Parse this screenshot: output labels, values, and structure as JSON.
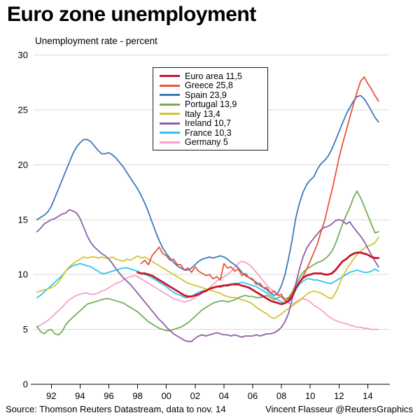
{
  "title": "Euro zone unemployment",
  "subtitle": "Unemployment rate - percent",
  "source_left": "Source: Thomson Reuters Datastream, data to nov. 14",
  "source_right": "Vincent Flasseur @ReutersGraphics",
  "chart_data": {
    "type": "line",
    "title": "Euro zone unemployment",
    "ylabel": "Unemployment rate - percent",
    "x_start": 1991.0,
    "x_step": 0.25,
    "xlim": [
      1990.8,
      2015.5
    ],
    "ylim": [
      0,
      30
    ],
    "y_ticks": [
      0,
      5,
      10,
      15,
      20,
      25,
      30
    ],
    "x_ticks": [
      1992,
      1994,
      1996,
      1998,
      2000,
      2002,
      2004,
      2006,
      2008,
      2010,
      2012,
      2014
    ],
    "x_tick_labels": [
      "92",
      "94",
      "96",
      "98",
      "00",
      "02",
      "04",
      "06",
      "08",
      "10",
      "12",
      "14"
    ],
    "grid": "horizontal",
    "grid_color": "#d9d9d9",
    "axis_color": "#000000",
    "legend_position": "top-inside",
    "series": [
      {
        "name": "Euro area",
        "legend_label": "Euro area 11,5",
        "color": "#c9182a",
        "width": 2.8,
        "values": [
          null,
          null,
          null,
          null,
          null,
          null,
          null,
          null,
          null,
          null,
          null,
          null,
          null,
          null,
          null,
          null,
          null,
          null,
          null,
          null,
          null,
          null,
          null,
          null,
          null,
          null,
          null,
          null,
          10.2,
          10.1,
          10.1,
          10.0,
          9.9,
          9.7,
          9.5,
          9.3,
          9.1,
          8.9,
          8.7,
          8.5,
          8.3,
          8.1,
          8.0,
          8.0,
          8.1,
          8.2,
          8.4,
          8.5,
          8.7,
          8.8,
          8.9,
          8.9,
          9.0,
          9.0,
          9.1,
          9.1,
          9.1,
          9.0,
          8.9,
          8.8,
          8.6,
          8.4,
          8.2,
          8.0,
          7.8,
          7.6,
          7.5,
          7.4,
          7.3,
          7.4,
          7.6,
          8.0,
          8.8,
          9.3,
          9.7,
          9.9,
          10.0,
          10.1,
          10.1,
          10.1,
          10.0,
          10.0,
          10.1,
          10.4,
          10.8,
          11.2,
          11.4,
          11.7,
          11.9,
          12.0,
          12.0,
          11.9,
          11.8,
          11.6,
          11.5,
          11.5
        ]
      },
      {
        "name": "Greece",
        "legend_label": "Greece 25,8",
        "color": "#e8543f",
        "width": 1.8,
        "values": [
          null,
          null,
          null,
          null,
          null,
          null,
          null,
          null,
          null,
          null,
          null,
          null,
          null,
          null,
          null,
          null,
          null,
          null,
          null,
          null,
          null,
          null,
          null,
          null,
          null,
          null,
          null,
          null,
          null,
          11.0,
          11.3,
          10.9,
          11.7,
          12.1,
          12.5,
          11.9,
          11.7,
          11.3,
          11.4,
          10.9,
          10.9,
          10.4,
          10.6,
          10.2,
          10.7,
          10.3,
          10.1,
          9.9,
          10.0,
          9.6,
          9.8,
          9.5,
          11.0,
          10.6,
          10.7,
          10.3,
          10.5,
          9.9,
          10.1,
          9.7,
          9.6,
          9.1,
          9.2,
          8.8,
          8.8,
          8.3,
          8.5,
          8.1,
          8.2,
          7.6,
          7.8,
          8.2,
          8.8,
          9.3,
          9.8,
          10.5,
          11.2,
          12.0,
          12.8,
          13.9,
          14.9,
          16.3,
          17.6,
          19.1,
          20.6,
          21.9,
          23.1,
          24.3,
          25.5,
          26.6,
          27.6,
          28.0,
          27.4,
          26.9,
          26.3,
          25.8
        ]
      },
      {
        "name": "Spain",
        "legend_label": "Spain 23,9",
        "color": "#3d79b8",
        "width": 1.8,
        "values": [
          15.0,
          15.2,
          15.4,
          15.7,
          16.2,
          17.0,
          17.8,
          18.6,
          19.4,
          20.2,
          21.0,
          21.6,
          22.0,
          22.3,
          22.3,
          22.1,
          21.7,
          21.3,
          21.0,
          21.0,
          21.1,
          20.9,
          20.6,
          20.2,
          19.8,
          19.3,
          18.8,
          18.3,
          17.8,
          17.2,
          16.5,
          15.7,
          14.8,
          13.9,
          13.1,
          12.4,
          11.9,
          11.5,
          11.1,
          10.8,
          10.6,
          10.4,
          10.4,
          10.6,
          10.9,
          11.2,
          11.4,
          11.5,
          11.6,
          11.5,
          11.6,
          11.7,
          11.6,
          11.4,
          11.1,
          10.9,
          10.6,
          10.2,
          9.9,
          9.7,
          9.5,
          9.3,
          9.0,
          8.8,
          8.6,
          8.3,
          8.1,
          8.3,
          9.0,
          10.0,
          11.5,
          13.2,
          15.2,
          16.5,
          17.5,
          18.2,
          18.6,
          18.9,
          19.6,
          20.1,
          20.4,
          20.8,
          21.4,
          22.2,
          23.0,
          23.8,
          24.6,
          25.2,
          25.8,
          26.2,
          26.3,
          26.0,
          25.5,
          24.9,
          24.3,
          23.9
        ]
      },
      {
        "name": "Portugal",
        "legend_label": "Portugal 13,9",
        "color": "#74ae59",
        "width": 1.8,
        "values": [
          5.3,
          4.8,
          4.6,
          4.9,
          5.0,
          4.6,
          4.5,
          4.8,
          5.4,
          5.8,
          6.1,
          6.4,
          6.7,
          7.0,
          7.3,
          7.4,
          7.5,
          7.6,
          7.7,
          7.8,
          7.8,
          7.7,
          7.6,
          7.5,
          7.4,
          7.2,
          7.0,
          6.8,
          6.6,
          6.3,
          6.0,
          5.7,
          5.5,
          5.3,
          5.1,
          5.0,
          4.9,
          4.9,
          5.0,
          5.1,
          5.2,
          5.4,
          5.6,
          5.9,
          6.2,
          6.5,
          6.8,
          7.0,
          7.2,
          7.4,
          7.5,
          7.6,
          7.6,
          7.5,
          7.6,
          7.7,
          7.9,
          8.0,
          8.1,
          8.0,
          8.0,
          7.9,
          7.9,
          8.0,
          8.1,
          7.9,
          7.7,
          7.9,
          8.0,
          7.8,
          7.9,
          8.4,
          9.1,
          9.7,
          10.2,
          10.5,
          10.7,
          10.9,
          11.1,
          11.2,
          11.4,
          11.7,
          12.1,
          12.8,
          13.7,
          14.6,
          15.4,
          16.1,
          17.0,
          17.6,
          17.0,
          16.2,
          15.4,
          14.6,
          13.8,
          13.9
        ]
      },
      {
        "name": "Italy",
        "legend_label": "Italy 13,4",
        "color": "#d3c431",
        "width": 1.8,
        "values": [
          8.4,
          8.5,
          8.6,
          8.7,
          8.8,
          9.0,
          9.3,
          9.8,
          10.3,
          10.7,
          11.0,
          11.2,
          11.4,
          11.6,
          11.5,
          11.6,
          11.6,
          11.5,
          11.6,
          11.5,
          11.5,
          11.6,
          11.4,
          11.3,
          11.2,
          11.4,
          11.3,
          11.5,
          11.7,
          11.5,
          11.6,
          11.4,
          11.2,
          11.0,
          10.8,
          10.6,
          10.4,
          10.2,
          10.0,
          9.8,
          9.6,
          9.4,
          9.2,
          9.1,
          9.0,
          8.9,
          8.8,
          8.7,
          8.6,
          8.5,
          8.4,
          8.3,
          8.1,
          8.0,
          7.9,
          7.9,
          7.8,
          7.7,
          7.6,
          7.5,
          7.3,
          7.0,
          6.8,
          6.6,
          6.4,
          6.1,
          6.0,
          6.2,
          6.4,
          6.7,
          6.9,
          7.1,
          7.4,
          7.6,
          7.9,
          8.2,
          8.4,
          8.5,
          8.4,
          8.3,
          8.1,
          7.9,
          7.8,
          8.3,
          9.0,
          9.8,
          10.4,
          10.9,
          11.4,
          11.8,
          12.1,
          12.4,
          12.6,
          12.7,
          12.9,
          13.4
        ]
      },
      {
        "name": "Ireland",
        "legend_label": "Ireland 10,7",
        "color": "#8d5fa9",
        "width": 1.8,
        "values": [
          13.9,
          14.2,
          14.6,
          14.8,
          15.0,
          15.1,
          15.3,
          15.5,
          15.6,
          15.9,
          15.8,
          15.6,
          15.1,
          14.3,
          13.5,
          12.9,
          12.5,
          12.2,
          11.9,
          11.7,
          11.4,
          11.0,
          10.5,
          10.1,
          9.7,
          9.4,
          9.1,
          8.7,
          8.3,
          7.9,
          7.5,
          7.1,
          6.7,
          6.3,
          5.9,
          5.6,
          5.2,
          4.9,
          4.6,
          4.4,
          4.2,
          4.0,
          3.9,
          3.9,
          4.2,
          4.4,
          4.5,
          4.4,
          4.5,
          4.6,
          4.7,
          4.6,
          4.5,
          4.5,
          4.4,
          4.5,
          4.4,
          4.3,
          4.4,
          4.4,
          4.4,
          4.5,
          4.4,
          4.5,
          4.6,
          4.6,
          4.7,
          4.9,
          5.2,
          5.7,
          6.5,
          7.8,
          9.2,
          10.5,
          11.6,
          12.4,
          12.9,
          13.3,
          13.7,
          14.1,
          14.3,
          14.4,
          14.6,
          14.9,
          15.0,
          14.9,
          14.6,
          14.8,
          14.3,
          13.9,
          13.5,
          13.0,
          12.4,
          11.8,
          11.2,
          10.7
        ]
      },
      {
        "name": "France",
        "legend_label": "France 10,3",
        "color": "#2ec4f2",
        "width": 1.8,
        "values": [
          7.9,
          8.1,
          8.4,
          8.7,
          9.0,
          9.3,
          9.6,
          9.9,
          10.3,
          10.6,
          10.8,
          10.9,
          11.0,
          10.9,
          10.8,
          10.7,
          10.5,
          10.3,
          10.1,
          10.1,
          10.2,
          10.3,
          10.4,
          10.5,
          10.6,
          10.6,
          10.5,
          10.4,
          10.3,
          10.1,
          10.0,
          9.9,
          9.7,
          9.5,
          9.3,
          9.1,
          8.9,
          8.6,
          8.4,
          8.2,
          8.1,
          7.9,
          7.9,
          8.0,
          8.2,
          8.4,
          8.5,
          8.6,
          8.7,
          8.8,
          8.9,
          9.0,
          9.0,
          9.1,
          9.1,
          9.2,
          9.2,
          9.3,
          9.2,
          9.1,
          9.0,
          8.9,
          8.7,
          8.5,
          8.3,
          8.1,
          7.9,
          7.7,
          7.5,
          7.4,
          7.5,
          7.9,
          8.6,
          9.1,
          9.4,
          9.6,
          9.6,
          9.5,
          9.5,
          9.4,
          9.3,
          9.2,
          9.2,
          9.4,
          9.6,
          9.8,
          10.0,
          10.2,
          10.3,
          10.4,
          10.3,
          10.2,
          10.2,
          10.3,
          10.5,
          10.3
        ]
      },
      {
        "name": "Germany",
        "legend_label": "Germany 5",
        "color": "#f7a1c8",
        "width": 1.8,
        "values": [
          5.2,
          5.4,
          5.6,
          5.8,
          6.1,
          6.4,
          6.7,
          7.0,
          7.4,
          7.7,
          7.9,
          8.1,
          8.2,
          8.3,
          8.3,
          8.2,
          8.2,
          8.3,
          8.5,
          8.6,
          8.8,
          9.0,
          9.2,
          9.3,
          9.5,
          9.7,
          9.8,
          9.9,
          9.8,
          9.6,
          9.4,
          9.2,
          9.0,
          8.8,
          8.6,
          8.4,
          8.2,
          8.0,
          7.8,
          7.7,
          7.6,
          7.5,
          7.6,
          7.7,
          7.9,
          8.1,
          8.3,
          8.5,
          8.8,
          9.1,
          9.4,
          9.6,
          9.8,
          10.0,
          10.3,
          10.6,
          11.0,
          11.2,
          11.1,
          10.9,
          10.6,
          10.2,
          9.8,
          9.4,
          9.0,
          8.7,
          8.4,
          8.2,
          7.9,
          7.6,
          7.4,
          7.3,
          7.5,
          7.7,
          7.8,
          7.7,
          7.5,
          7.2,
          7.0,
          6.8,
          6.5,
          6.2,
          6.0,
          5.8,
          5.7,
          5.6,
          5.5,
          5.4,
          5.3,
          5.2,
          5.2,
          5.1,
          5.1,
          5.0,
          5.0,
          5.0
        ]
      }
    ],
    "draw_order": [
      7,
      6,
      4,
      3,
      5,
      2,
      1,
      0
    ]
  }
}
